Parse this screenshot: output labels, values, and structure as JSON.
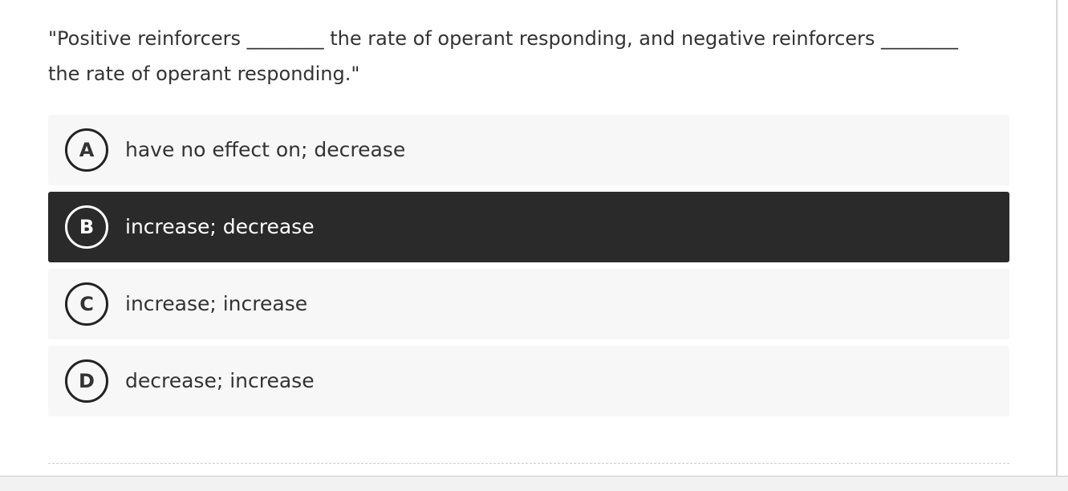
{
  "question": "\"Positive reinforcers ________ the rate of operant responding, and negative reinforcers ________ the rate of operant responding.\"",
  "options": [
    {
      "letter": "A",
      "text": "have no effect on; decrease",
      "selected": false
    },
    {
      "letter": "B",
      "text": "increase; decrease",
      "selected": true
    },
    {
      "letter": "C",
      "text": "increase; increase",
      "selected": false
    },
    {
      "letter": "D",
      "text": "decrease; increase",
      "selected": false
    }
  ]
}
